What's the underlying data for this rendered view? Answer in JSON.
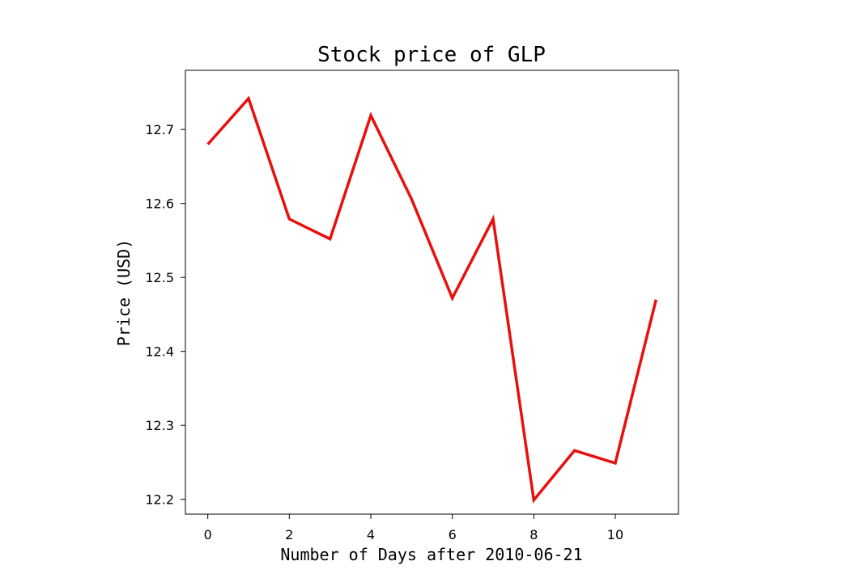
{
  "chart_data": {
    "type": "line",
    "title": "Stock price of GLP",
    "xlabel": "Number of Days after 2010-06-21",
    "ylabel": "Price (USD)",
    "xlim": [
      -0.55,
      11.55
    ],
    "ylim": [
      12.18,
      12.78
    ],
    "xticks": [
      0,
      2,
      4,
      6,
      8,
      10
    ],
    "xtick_labels": [
      "0",
      "2",
      "4",
      "6",
      "8",
      "10"
    ],
    "yticks": [
      12.2,
      12.3,
      12.4,
      12.5,
      12.6,
      12.7
    ],
    "ytick_labels": [
      "12.2",
      "12.3",
      "12.4",
      "12.5",
      "12.6",
      "12.7"
    ],
    "grid": false,
    "legend": "none",
    "series": [
      {
        "color": "#e8100f",
        "x": [
          0,
          1,
          2,
          3,
          4,
          5,
          6,
          7,
          8,
          9,
          10,
          11
        ],
        "y": [
          12.68,
          12.742,
          12.579,
          12.552,
          12.719,
          12.606,
          12.472,
          12.579,
          12.199,
          12.266,
          12.249,
          12.47
        ]
      }
    ]
  }
}
